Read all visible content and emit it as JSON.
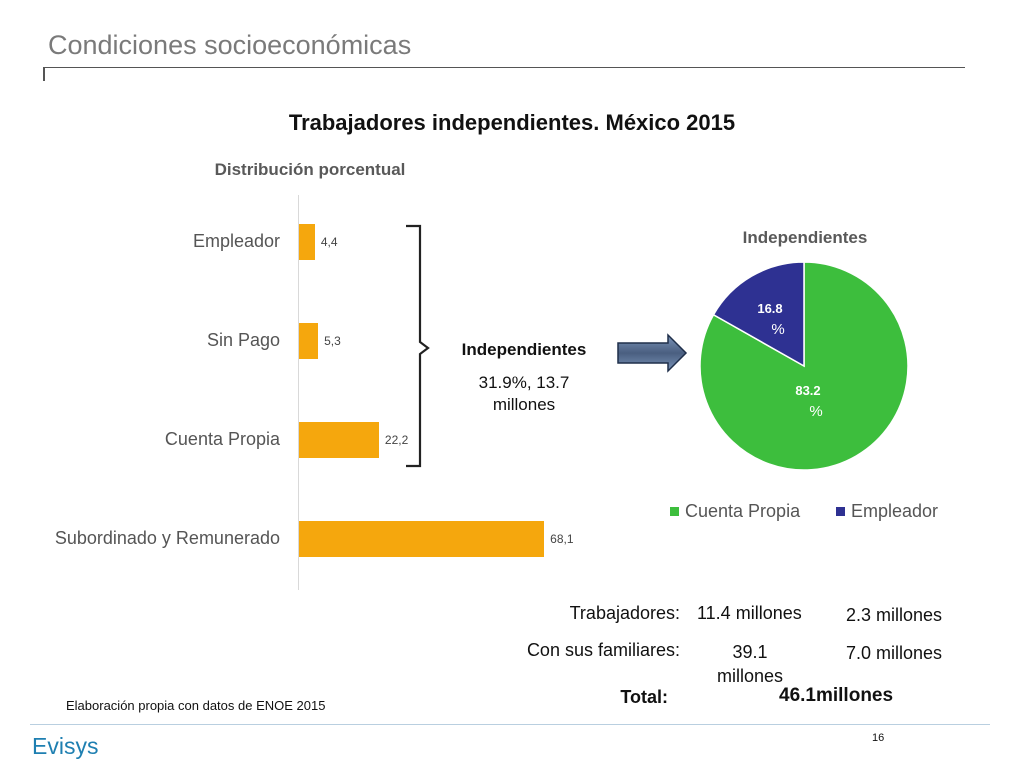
{
  "slide_title": "Condiciones socioeconómicas",
  "chart_title": "Trabajadores independientes. México 2015",
  "colors": {
    "bar": "#F5A70D",
    "cuenta_propia": "#3DBE3D",
    "empleador": "#2E3192"
  },
  "chart_data": [
    {
      "type": "bar",
      "orientation": "horizontal",
      "title": "Distribución porcentual",
      "categories": [
        "Empleador",
        "Sin Pago",
        "Cuenta Propia",
        "Subordinado y Remunerado"
      ],
      "values": [
        4.4,
        5.3,
        22.2,
        68.1
      ],
      "value_labels": [
        "4,4",
        "5,3",
        "22,2",
        "68,1"
      ],
      "grid": false
    },
    {
      "type": "pie",
      "title": "Independientes",
      "labels": [
        "Cuenta Propia",
        "Empleador"
      ],
      "values": [
        83.2,
        16.8
      ],
      "value_labels": [
        "83.2",
        "16.8"
      ],
      "unit": "%",
      "legend_position": "bottom"
    }
  ],
  "annotation": {
    "label": "Independientes",
    "value_line1": "31.9%, 13.7",
    "value_line2": "millones"
  },
  "table": {
    "row1_label": "Trabajadores:",
    "row1_col1": "11.4 millones",
    "row1_col2": "2.3  millones",
    "row2_label": "Con sus familiares:",
    "row2_col1_line1": "39.1",
    "row2_col1_line2": "millones",
    "row2_col2": "7.0 millones",
    "total_label": "Total:",
    "total_value": "46.1millones"
  },
  "source_note": "Elaboración propia con datos de ENOE 2015",
  "logo_text": "Evisys",
  "page_number": "16"
}
